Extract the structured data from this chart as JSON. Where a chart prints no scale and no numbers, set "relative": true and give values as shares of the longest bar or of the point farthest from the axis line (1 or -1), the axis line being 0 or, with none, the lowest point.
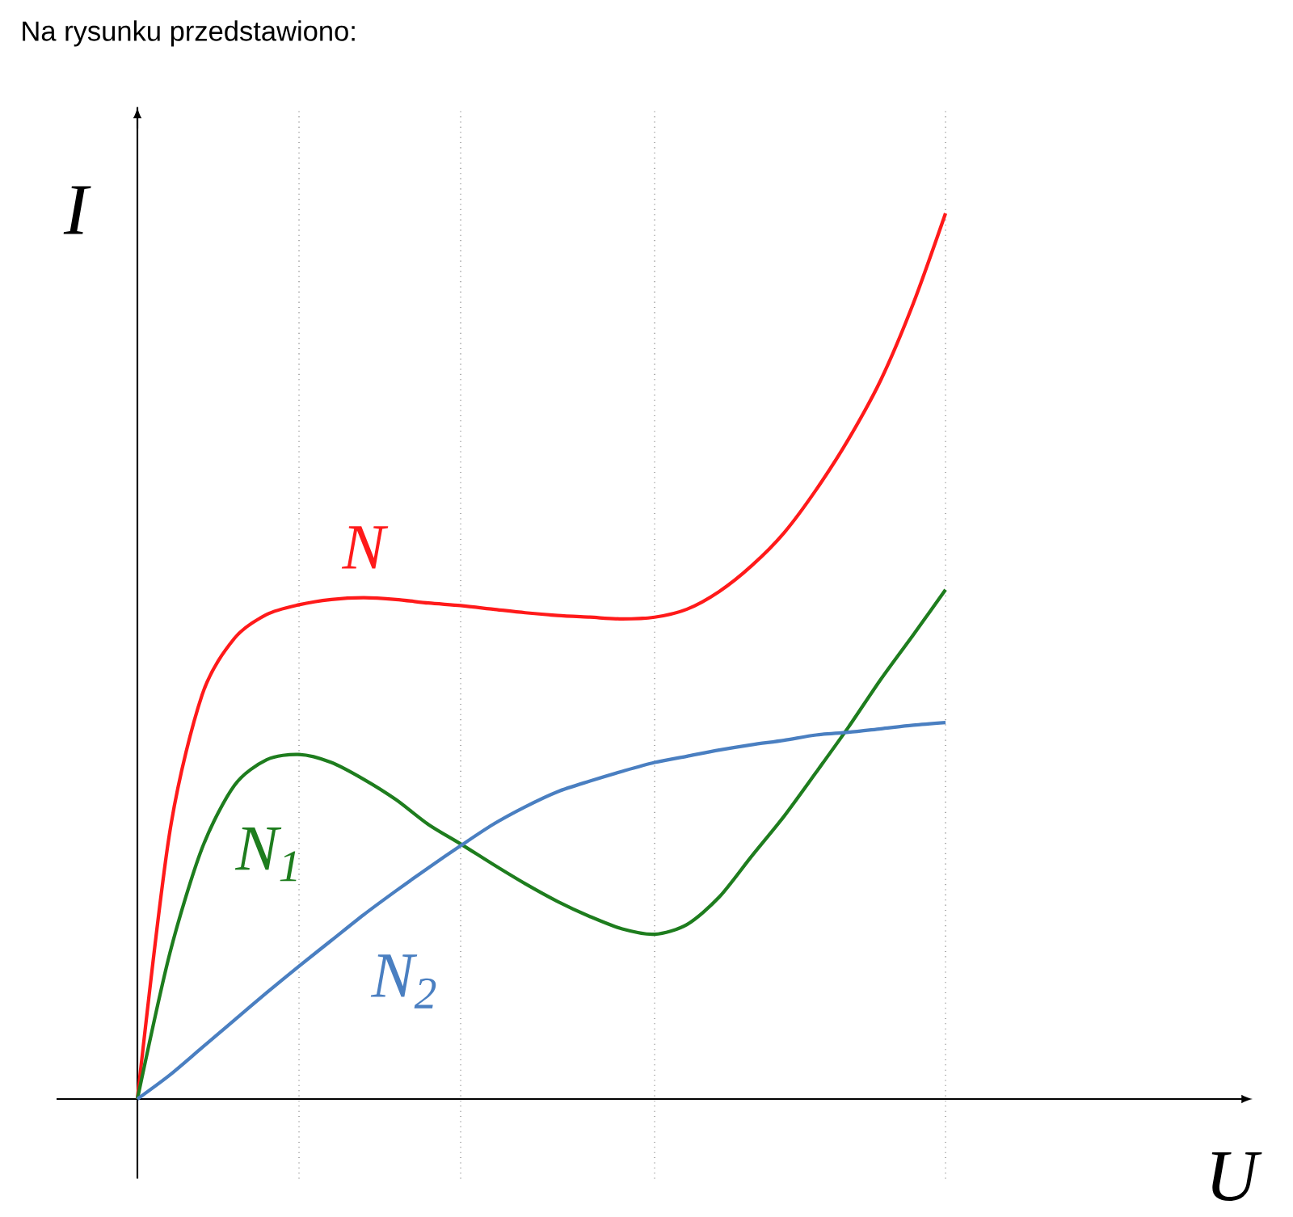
{
  "chart_data": {
    "type": "line",
    "title": "Na rysunku przedstawiono:",
    "xlabel": "U",
    "ylabel": "I",
    "relative": true,
    "marker": "none",
    "grid": "x",
    "categories": [
      null,
      null,
      null,
      null,
      null,
      null,
      null,
      null,
      null,
      null,
      null,
      null,
      null,
      null,
      null,
      null,
      null,
      null,
      null,
      null,
      null,
      null,
      null,
      null,
      null,
      null
    ],
    "series": [
      {
        "name": "N",
        "color": "#ff1a1a",
        "values": [
          0,
          0.301,
          0.456,
          0.52,
          0.547,
          0.558,
          0.564,
          0.566,
          0.564,
          0.56,
          0.557,
          0.553,
          0.549,
          0.546,
          0.544,
          0.542,
          0.544,
          0.553,
          0.573,
          0.602,
          0.639,
          0.688,
          0.745,
          0.812,
          0.898,
          1.0
        ]
      },
      {
        "name": "N$_{1}$",
        "color": "#1e7d1e",
        "values": [
          0,
          0.164,
          0.283,
          0.354,
          0.383,
          0.389,
          0.38,
          0.361,
          0.338,
          0.31,
          0.288,
          0.265,
          0.243,
          0.223,
          0.206,
          0.192,
          0.186,
          0.197,
          0.228,
          0.274,
          0.319,
          0.369,
          0.42,
          0.474,
          0.524,
          0.575
        ]
      },
      {
        "name": "N$_{2}$",
        "color": "#4a7fc1",
        "values": [
          0,
          0.027,
          0.058,
          0.089,
          0.12,
          0.15,
          0.179,
          0.208,
          0.235,
          0.261,
          0.286,
          0.31,
          0.33,
          0.347,
          0.359,
          0.37,
          0.38,
          0.387,
          0.394,
          0.4,
          0.405,
          0.411,
          0.414,
          0.418,
          0.422,
          0.425
        ]
      }
    ]
  }
}
